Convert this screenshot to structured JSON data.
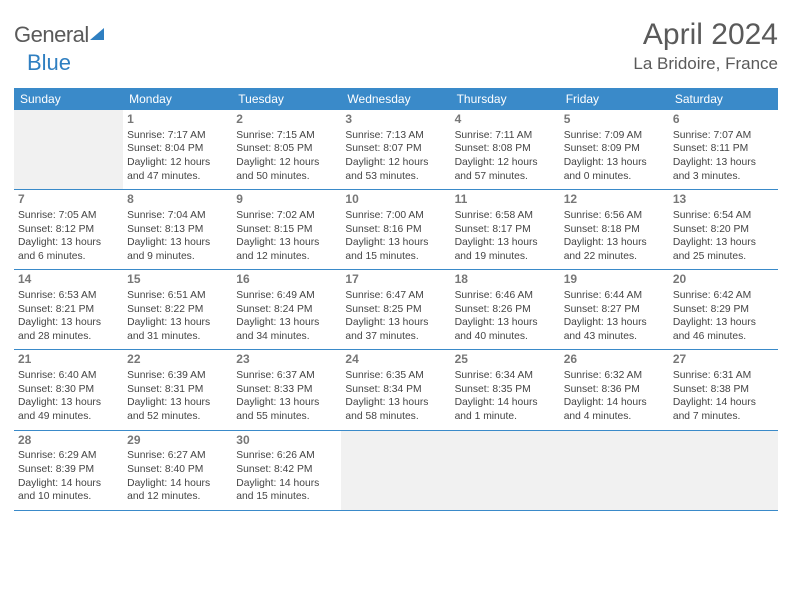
{
  "logo": {
    "text_gray": "General",
    "text_blue": "Blue"
  },
  "title": "April 2024",
  "location": "La Bridoire, France",
  "colors": {
    "header_bg": "#3a8ac9",
    "header_text": "#ffffff",
    "logo_gray": "#5a5a5a",
    "logo_blue": "#2f7fc1",
    "text": "#444444",
    "daynum": "#777777",
    "empty_bg": "#f1f1f1",
    "border": "#3a8ac9",
    "page_bg": "#ffffff"
  },
  "typography": {
    "title_fontsize": 30,
    "location_fontsize": 17,
    "dow_fontsize": 12,
    "daynum_fontsize": 12,
    "cell_fontsize": 10.3
  },
  "layout": {
    "columns": 7,
    "rows": 5,
    "first_day_column_index": 1
  },
  "dow": [
    "Sunday",
    "Monday",
    "Tuesday",
    "Wednesday",
    "Thursday",
    "Friday",
    "Saturday"
  ],
  "weeks": [
    [
      null,
      {
        "n": "1",
        "sr": "Sunrise: 7:17 AM",
        "ss": "Sunset: 8:04 PM",
        "dl": "Daylight: 12 hours and 47 minutes."
      },
      {
        "n": "2",
        "sr": "Sunrise: 7:15 AM",
        "ss": "Sunset: 8:05 PM",
        "dl": "Daylight: 12 hours and 50 minutes."
      },
      {
        "n": "3",
        "sr": "Sunrise: 7:13 AM",
        "ss": "Sunset: 8:07 PM",
        "dl": "Daylight: 12 hours and 53 minutes."
      },
      {
        "n": "4",
        "sr": "Sunrise: 7:11 AM",
        "ss": "Sunset: 8:08 PM",
        "dl": "Daylight: 12 hours and 57 minutes."
      },
      {
        "n": "5",
        "sr": "Sunrise: 7:09 AM",
        "ss": "Sunset: 8:09 PM",
        "dl": "Daylight: 13 hours and 0 minutes."
      },
      {
        "n": "6",
        "sr": "Sunrise: 7:07 AM",
        "ss": "Sunset: 8:11 PM",
        "dl": "Daylight: 13 hours and 3 minutes."
      }
    ],
    [
      {
        "n": "7",
        "sr": "Sunrise: 7:05 AM",
        "ss": "Sunset: 8:12 PM",
        "dl": "Daylight: 13 hours and 6 minutes."
      },
      {
        "n": "8",
        "sr": "Sunrise: 7:04 AM",
        "ss": "Sunset: 8:13 PM",
        "dl": "Daylight: 13 hours and 9 minutes."
      },
      {
        "n": "9",
        "sr": "Sunrise: 7:02 AM",
        "ss": "Sunset: 8:15 PM",
        "dl": "Daylight: 13 hours and 12 minutes."
      },
      {
        "n": "10",
        "sr": "Sunrise: 7:00 AM",
        "ss": "Sunset: 8:16 PM",
        "dl": "Daylight: 13 hours and 15 minutes."
      },
      {
        "n": "11",
        "sr": "Sunrise: 6:58 AM",
        "ss": "Sunset: 8:17 PM",
        "dl": "Daylight: 13 hours and 19 minutes."
      },
      {
        "n": "12",
        "sr": "Sunrise: 6:56 AM",
        "ss": "Sunset: 8:18 PM",
        "dl": "Daylight: 13 hours and 22 minutes."
      },
      {
        "n": "13",
        "sr": "Sunrise: 6:54 AM",
        "ss": "Sunset: 8:20 PM",
        "dl": "Daylight: 13 hours and 25 minutes."
      }
    ],
    [
      {
        "n": "14",
        "sr": "Sunrise: 6:53 AM",
        "ss": "Sunset: 8:21 PM",
        "dl": "Daylight: 13 hours and 28 minutes."
      },
      {
        "n": "15",
        "sr": "Sunrise: 6:51 AM",
        "ss": "Sunset: 8:22 PM",
        "dl": "Daylight: 13 hours and 31 minutes."
      },
      {
        "n": "16",
        "sr": "Sunrise: 6:49 AM",
        "ss": "Sunset: 8:24 PM",
        "dl": "Daylight: 13 hours and 34 minutes."
      },
      {
        "n": "17",
        "sr": "Sunrise: 6:47 AM",
        "ss": "Sunset: 8:25 PM",
        "dl": "Daylight: 13 hours and 37 minutes."
      },
      {
        "n": "18",
        "sr": "Sunrise: 6:46 AM",
        "ss": "Sunset: 8:26 PM",
        "dl": "Daylight: 13 hours and 40 minutes."
      },
      {
        "n": "19",
        "sr": "Sunrise: 6:44 AM",
        "ss": "Sunset: 8:27 PM",
        "dl": "Daylight: 13 hours and 43 minutes."
      },
      {
        "n": "20",
        "sr": "Sunrise: 6:42 AM",
        "ss": "Sunset: 8:29 PM",
        "dl": "Daylight: 13 hours and 46 minutes."
      }
    ],
    [
      {
        "n": "21",
        "sr": "Sunrise: 6:40 AM",
        "ss": "Sunset: 8:30 PM",
        "dl": "Daylight: 13 hours and 49 minutes."
      },
      {
        "n": "22",
        "sr": "Sunrise: 6:39 AM",
        "ss": "Sunset: 8:31 PM",
        "dl": "Daylight: 13 hours and 52 minutes."
      },
      {
        "n": "23",
        "sr": "Sunrise: 6:37 AM",
        "ss": "Sunset: 8:33 PM",
        "dl": "Daylight: 13 hours and 55 minutes."
      },
      {
        "n": "24",
        "sr": "Sunrise: 6:35 AM",
        "ss": "Sunset: 8:34 PM",
        "dl": "Daylight: 13 hours and 58 minutes."
      },
      {
        "n": "25",
        "sr": "Sunrise: 6:34 AM",
        "ss": "Sunset: 8:35 PM",
        "dl": "Daylight: 14 hours and 1 minute."
      },
      {
        "n": "26",
        "sr": "Sunrise: 6:32 AM",
        "ss": "Sunset: 8:36 PM",
        "dl": "Daylight: 14 hours and 4 minutes."
      },
      {
        "n": "27",
        "sr": "Sunrise: 6:31 AM",
        "ss": "Sunset: 8:38 PM",
        "dl": "Daylight: 14 hours and 7 minutes."
      }
    ],
    [
      {
        "n": "28",
        "sr": "Sunrise: 6:29 AM",
        "ss": "Sunset: 8:39 PM",
        "dl": "Daylight: 14 hours and 10 minutes."
      },
      {
        "n": "29",
        "sr": "Sunrise: 6:27 AM",
        "ss": "Sunset: 8:40 PM",
        "dl": "Daylight: 14 hours and 12 minutes."
      },
      {
        "n": "30",
        "sr": "Sunrise: 6:26 AM",
        "ss": "Sunset: 8:42 PM",
        "dl": "Daylight: 14 hours and 15 minutes."
      },
      null,
      null,
      null,
      null
    ]
  ]
}
